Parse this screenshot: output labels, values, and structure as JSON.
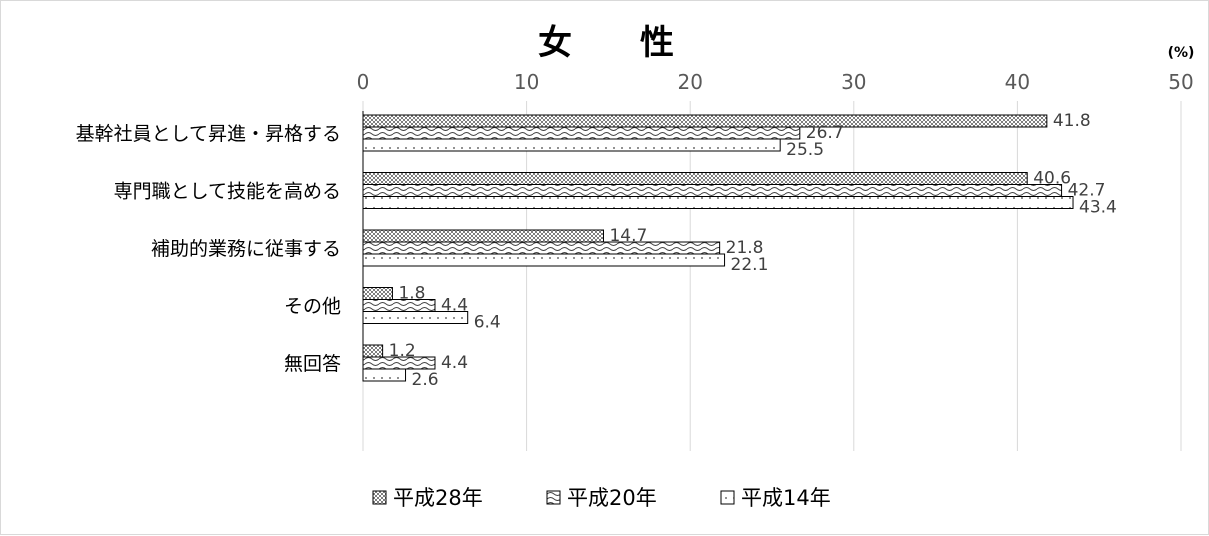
{
  "chart_data": {
    "type": "bar",
    "orientation": "horizontal",
    "title": "女　　性",
    "unit_label": "(%)",
    "xlim": [
      0,
      50
    ],
    "xticks": [
      "0",
      "10",
      "20",
      "30",
      "40",
      "50"
    ],
    "grid": true,
    "legend_position": "bottom",
    "categories": [
      "基幹社員として昇進・昇格する",
      "専門職として技能を高める",
      "補助的業務に従事する",
      "その他",
      "無回答"
    ],
    "series": [
      {
        "name": "平成28年",
        "values": [
          41.8,
          40.6,
          14.7,
          1.8,
          1.2
        ],
        "labels": [
          "41.8",
          "40.6",
          "14.7",
          "1.8",
          "1.2"
        ],
        "pattern": "checker"
      },
      {
        "name": "平成20年",
        "values": [
          26.7,
          42.7,
          21.8,
          4.4,
          4.4
        ],
        "labels": [
          "26.7",
          "42.7",
          "21.8",
          "4.4",
          "4.4"
        ],
        "pattern": "wave"
      },
      {
        "name": "平成14年",
        "values": [
          25.5,
          43.4,
          22.1,
          6.4,
          2.6
        ],
        "labels": [
          "25.5",
          "43.4",
          "22.1",
          "6.4",
          "2.6"
        ],
        "pattern": "dots"
      }
    ],
    "colors": {
      "bar_stroke": "#000000",
      "checker_dark": "#7f7f7f",
      "grid": "#d9d9d9",
      "tick_text": "#595959",
      "label_text": "#404040"
    }
  }
}
